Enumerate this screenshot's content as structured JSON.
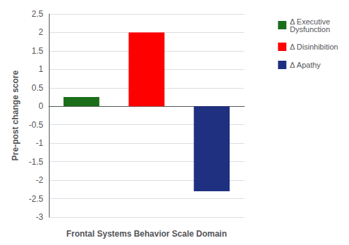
{
  "chart_data": {
    "type": "bar",
    "categories": [
      null,
      null,
      null
    ],
    "series": [
      {
        "name": "Δ Executive\nDysfunction",
        "color": "#1a6e1a",
        "values": [
          0.25,
          null,
          null
        ]
      },
      {
        "name": "Δ Disinhibition",
        "color": "#ff0000",
        "values": [
          null,
          2.0,
          null
        ]
      },
      {
        "name": "Δ Apathy",
        "color": "#1f3080",
        "values": [
          null,
          null,
          -2.3
        ]
      }
    ],
    "xlabel": "Frontal Systems Behavior Scale Domain",
    "ylabel": "Pre-post change score",
    "ylim": [
      -3,
      2.5
    ],
    "yticks": [
      -3,
      -2.5,
      -2,
      -1.5,
      -1,
      -0.5,
      0,
      0.5,
      1,
      1.5,
      2,
      2.5
    ],
    "grid": true,
    "legend": "right",
    "tick_labels": "y"
  }
}
